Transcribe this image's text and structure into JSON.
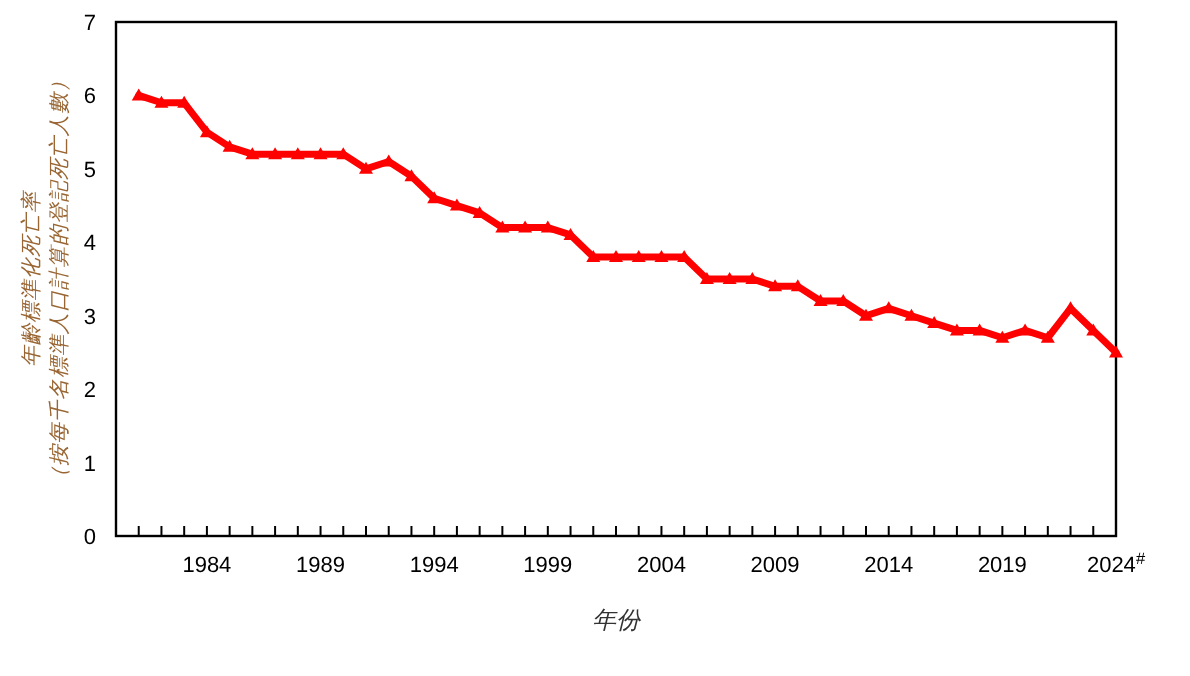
{
  "chart_data": {
    "type": "line",
    "xlabel": "年份",
    "ylabel": "年齡標準化死亡率（按每千名標準人口計算的登記死亡人數）",
    "x": [
      1981,
      1982,
      1983,
      1984,
      1985,
      1986,
      1987,
      1988,
      1989,
      1990,
      1991,
      1992,
      1993,
      1994,
      1995,
      1996,
      1997,
      1998,
      1999,
      2000,
      2001,
      2002,
      2003,
      2004,
      2005,
      2006,
      2007,
      2008,
      2009,
      2010,
      2011,
      2012,
      2013,
      2014,
      2015,
      2016,
      2017,
      2018,
      2019,
      2020,
      2021,
      2022,
      2023,
      2024
    ],
    "series": [
      {
        "color": "#ff0000",
        "values": [
          6.0,
          5.9,
          5.9,
          5.5,
          5.3,
          5.2,
          5.2,
          5.2,
          5.2,
          5.2,
          5.0,
          5.1,
          4.9,
          4.6,
          4.5,
          4.4,
          4.2,
          4.2,
          4.2,
          4.1,
          3.8,
          3.8,
          3.8,
          3.8,
          3.8,
          3.5,
          3.5,
          3.5,
          3.4,
          3.4,
          3.2,
          3.2,
          3.0,
          3.1,
          3.0,
          2.9,
          2.8,
          2.8,
          2.7,
          2.8,
          2.7,
          3.1,
          2.8,
          2.5
        ]
      }
    ],
    "xlim": [
      1980,
      2024
    ],
    "ylim": [
      0,
      7
    ],
    "yticks": [
      0,
      1,
      2,
      3,
      4,
      5,
      6,
      7
    ],
    "xticks": [
      {
        "value": 1981,
        "label": null
      },
      {
        "value": 1982,
        "label": null
      },
      {
        "value": 1983,
        "label": null
      },
      {
        "value": 1984,
        "label": "1984"
      },
      {
        "value": 1985,
        "label": null
      },
      {
        "value": 1986,
        "label": null
      },
      {
        "value": 1987,
        "label": null
      },
      {
        "value": 1988,
        "label": null
      },
      {
        "value": 1989,
        "label": "1989"
      },
      {
        "value": 1990,
        "label": null
      },
      {
        "value": 1991,
        "label": null
      },
      {
        "value": 1992,
        "label": null
      },
      {
        "value": 1993,
        "label": null
      },
      {
        "value": 1994,
        "label": "1994"
      },
      {
        "value": 1995,
        "label": null
      },
      {
        "value": 1996,
        "label": null
      },
      {
        "value": 1997,
        "label": null
      },
      {
        "value": 1998,
        "label": null
      },
      {
        "value": 1999,
        "label": "1999"
      },
      {
        "value": 2000,
        "label": null
      },
      {
        "value": 2001,
        "label": null
      },
      {
        "value": 2002,
        "label": null
      },
      {
        "value": 2003,
        "label": null
      },
      {
        "value": 2004,
        "label": "2004"
      },
      {
        "value": 2005,
        "label": null
      },
      {
        "value": 2006,
        "label": null
      },
      {
        "value": 2007,
        "label": null
      },
      {
        "value": 2008,
        "label": null
      },
      {
        "value": 2009,
        "label": "2009"
      },
      {
        "value": 2010,
        "label": null
      },
      {
        "value": 2011,
        "label": null
      },
      {
        "value": 2012,
        "label": null
      },
      {
        "value": 2013,
        "label": null
      },
      {
        "value": 2014,
        "label": "2014"
      },
      {
        "value": 2015,
        "label": null
      },
      {
        "value": 2016,
        "label": null
      },
      {
        "value": 2017,
        "label": null
      },
      {
        "value": 2018,
        "label": null
      },
      {
        "value": 2019,
        "label": "2019"
      },
      {
        "value": 2020,
        "label": null
      },
      {
        "value": 2021,
        "label": null
      },
      {
        "value": 2022,
        "label": null
      },
      {
        "value": 2023,
        "label": null
      },
      {
        "value": 2024,
        "label": "2024$^{#}$"
      }
    ],
    "marker": "triangle",
    "grid": false
  }
}
